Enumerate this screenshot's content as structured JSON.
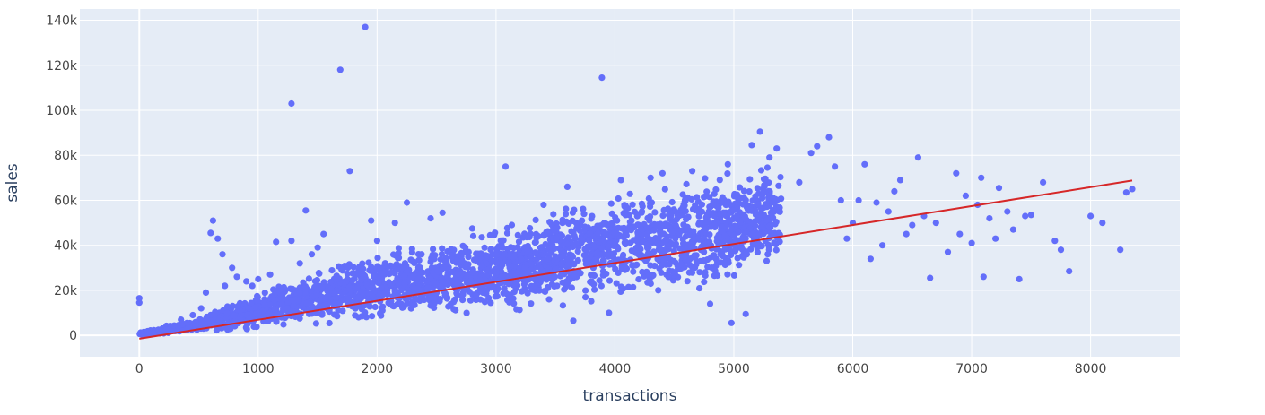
{
  "chart_data": {
    "type": "scatter",
    "title": "",
    "xlabel": "transactions",
    "ylabel": "sales",
    "xlim": [
      -500,
      8750
    ],
    "ylim": [
      -9500,
      145000
    ],
    "grid": true,
    "legend": "none",
    "x_ticks": [
      0,
      1000,
      2000,
      3000,
      4000,
      5000,
      6000,
      7000,
      8000
    ],
    "x_tick_labels": [
      "0",
      "1000",
      "2000",
      "3000",
      "4000",
      "5000",
      "6000",
      "7000",
      "8000"
    ],
    "y_ticks": [
      0,
      20000,
      40000,
      60000,
      80000,
      100000,
      120000,
      140000
    ],
    "y_tick_labels": [
      "0",
      "20k",
      "40k",
      "60k",
      "80k",
      "100k",
      "120k",
      "140k"
    ],
    "colors": {
      "plot_background": "#e5ecf6",
      "grid": "#ffffff",
      "points": "#636efa",
      "trendline": "#d62728"
    },
    "series": [
      {
        "kind": "points",
        "density_band": {
          "x_range": [
            0,
            5400
          ],
          "x": [
            0,
            500,
            1000,
            1500,
            2000,
            2500,
            3000,
            3500,
            4000,
            4500,
            5000,
            5400
          ],
          "y_low": [
            0,
            1000,
            2000,
            3500,
            5000,
            7000,
            9000,
            12000,
            15000,
            18000,
            22000,
            30000
          ],
          "y_high": [
            1500,
            8000,
            20000,
            30000,
            38000,
            42000,
            47000,
            58000,
            65000,
            70000,
            75000,
            78000
          ]
        },
        "points": [
          [
            0,
            16500
          ],
          [
            0,
            14500
          ],
          [
            20,
            400
          ],
          [
            60,
            200
          ],
          [
            120,
            800
          ],
          [
            180,
            1500
          ],
          [
            250,
            2500
          ],
          [
            350,
            7000
          ],
          [
            400,
            5500
          ],
          [
            450,
            9000
          ],
          [
            520,
            12000
          ],
          [
            560,
            19000
          ],
          [
            600,
            45500
          ],
          [
            620,
            51000
          ],
          [
            660,
            43000
          ],
          [
            700,
            36000
          ],
          [
            720,
            22000
          ],
          [
            780,
            30000
          ],
          [
            820,
            26000
          ],
          [
            900,
            24000
          ],
          [
            950,
            22000
          ],
          [
            1000,
            25000
          ],
          [
            1100,
            27000
          ],
          [
            1150,
            41500
          ],
          [
            1280,
            42000
          ],
          [
            1280,
            103000
          ],
          [
            1350,
            32000
          ],
          [
            1400,
            55500
          ],
          [
            1450,
            36000
          ],
          [
            1500,
            39000
          ],
          [
            1550,
            45000
          ],
          [
            1690,
            118000
          ],
          [
            1770,
            73000
          ],
          [
            1900,
            137000
          ],
          [
            1950,
            51000
          ],
          [
            2000,
            42000
          ],
          [
            2150,
            50000
          ],
          [
            2250,
            59000
          ],
          [
            2450,
            52000
          ],
          [
            2550,
            54500
          ],
          [
            2800,
            47500
          ],
          [
            2950,
            44500
          ],
          [
            3080,
            75000
          ],
          [
            3400,
            58000
          ],
          [
            3600,
            66000
          ],
          [
            3650,
            6500
          ],
          [
            3890,
            114500
          ],
          [
            3950,
            10000
          ],
          [
            4050,
            69000
          ],
          [
            4300,
            70000
          ],
          [
            4400,
            72000
          ],
          [
            4650,
            73000
          ],
          [
            4800,
            14000
          ],
          [
            4950,
            76000
          ],
          [
            4980,
            5500
          ],
          [
            5100,
            9500
          ],
          [
            5150,
            84500
          ],
          [
            5220,
            90500
          ],
          [
            5300,
            79000
          ],
          [
            5360,
            83000
          ],
          [
            5550,
            68000
          ],
          [
            5650,
            81000
          ],
          [
            5700,
            84000
          ],
          [
            5800,
            88000
          ],
          [
            5850,
            75000
          ],
          [
            5900,
            60000
          ],
          [
            5950,
            43000
          ],
          [
            6000,
            50000
          ],
          [
            6050,
            60000
          ],
          [
            6100,
            76000
          ],
          [
            6150,
            34000
          ],
          [
            6200,
            59000
          ],
          [
            6250,
            40000
          ],
          [
            6300,
            55000
          ],
          [
            6350,
            64000
          ],
          [
            6400,
            69000
          ],
          [
            6450,
            45000
          ],
          [
            6500,
            49000
          ],
          [
            6550,
            79000
          ],
          [
            6600,
            53000
          ],
          [
            6650,
            25500
          ],
          [
            6700,
            50000
          ],
          [
            6800,
            37000
          ],
          [
            6870,
            72000
          ],
          [
            6900,
            45000
          ],
          [
            6950,
            62000
          ],
          [
            7000,
            41000
          ],
          [
            7050,
            58000
          ],
          [
            7080,
            70000
          ],
          [
            7100,
            26000
          ],
          [
            7150,
            52000
          ],
          [
            7200,
            43000
          ],
          [
            7230,
            65500
          ],
          [
            7300,
            55000
          ],
          [
            7350,
            47000
          ],
          [
            7400,
            25000
          ],
          [
            7450,
            53000
          ],
          [
            7500,
            53500
          ],
          [
            7600,
            68000
          ],
          [
            7700,
            42000
          ],
          [
            7750,
            38000
          ],
          [
            7820,
            28500
          ],
          [
            8000,
            53000
          ],
          [
            8100,
            50000
          ],
          [
            8250,
            38000
          ],
          [
            8300,
            63500
          ],
          [
            8350,
            65000
          ]
        ]
      },
      {
        "kind": "trendline",
        "x": [
          0,
          8350
        ],
        "y": [
          -1500,
          68800
        ]
      }
    ]
  }
}
